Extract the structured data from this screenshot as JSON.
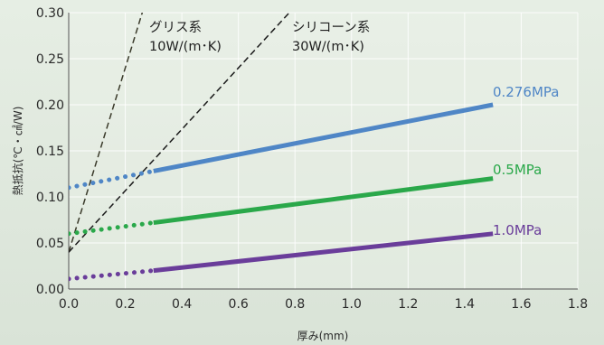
{
  "chart_data": {
    "type": "line",
    "title": "",
    "xlabel": "厚み(mm)",
    "ylabel": "熱抵抗(℃・㎠/W)",
    "xlim": [
      0.0,
      1.8
    ],
    "ylim": [
      0.0,
      0.3
    ],
    "x_ticks": [
      "0.0",
      "0.2",
      "0.4",
      "0.6",
      "0.8",
      "1.0",
      "1.2",
      "1.4",
      "1.6",
      "1.8"
    ],
    "y_ticks": [
      "0.00",
      "0.05",
      "0.10",
      "0.15",
      "0.20",
      "0.25",
      "0.30"
    ],
    "grid": true,
    "series": [
      {
        "name": "0.276MPa",
        "color": "#4f86c6",
        "extrapolated": {
          "x": [
            0.0,
            0.3
          ],
          "y": [
            0.11,
            0.128
          ]
        },
        "measured": {
          "x": [
            0.3,
            1.5
          ],
          "y": [
            0.128,
            0.2
          ]
        }
      },
      {
        "name": "0.5MPa",
        "color": "#2aa84a",
        "extrapolated": {
          "x": [
            0.0,
            0.3
          ],
          "y": [
            0.06,
            0.072
          ]
        },
        "measured": {
          "x": [
            0.3,
            1.5
          ],
          "y": [
            0.072,
            0.12
          ]
        }
      },
      {
        "name": "1.0MPa",
        "color": "#6a3d9a",
        "extrapolated": {
          "x": [
            0.0,
            0.3
          ],
          "y": [
            0.011,
            0.02
          ]
        },
        "measured": {
          "x": [
            0.3,
            1.5
          ],
          "y": [
            0.02,
            0.06
          ]
        }
      }
    ],
    "reference_lines": [
      {
        "label_line1": "グリス系",
        "label_line2": "10W/(m･K)",
        "color": "#3a3a2a",
        "x": [
          0.0,
          0.3
        ],
        "y": [
          0.04,
          0.34
        ]
      },
      {
        "label_line1": "シリコーン系",
        "label_line2": "30W/(m･K)",
        "color": "#1a1a1a",
        "x": [
          0.0,
          0.78
        ],
        "y": [
          0.04,
          0.3
        ]
      }
    ]
  }
}
